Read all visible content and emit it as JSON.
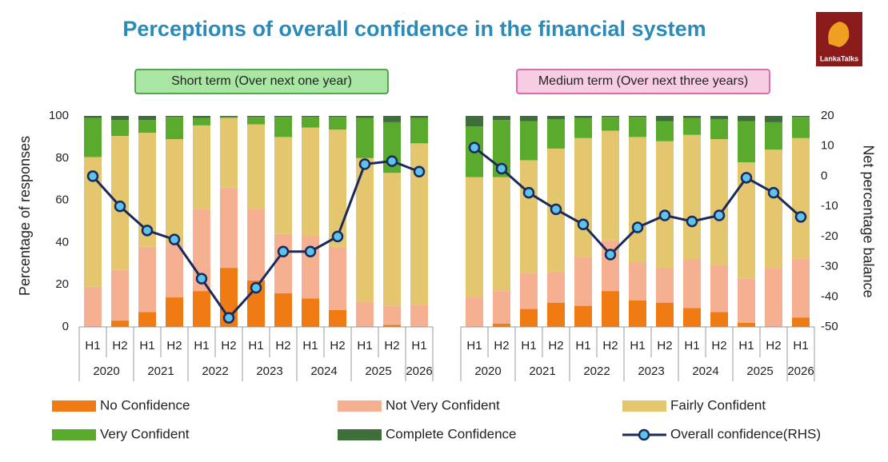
{
  "chart_data": {
    "type": "stacked_bar_line",
    "title": "Perceptions of overall confidence in the financial system",
    "logo": "LankaTalks",
    "y_label": "Percentage of responses",
    "y2_label": "Net percentage balance",
    "ylim": [
      0,
      100
    ],
    "yticks": [
      0,
      20,
      40,
      60,
      80,
      100
    ],
    "y2lim": [
      -50,
      20
    ],
    "y2ticks": [
      -50,
      -40,
      -30,
      -20,
      -10,
      0,
      10,
      20
    ],
    "x_groups": [
      {
        "label": "2020",
        "categories": [
          "H1",
          "H2"
        ]
      },
      {
        "label": "2021",
        "categories": [
          "H1",
          "H2"
        ]
      },
      {
        "label": "2022",
        "categories": [
          "H1",
          "H2"
        ]
      },
      {
        "label": "2023",
        "categories": [
          "H1",
          "H2"
        ]
      },
      {
        "label": "2024",
        "categories": [
          "H1",
          "H2"
        ]
      },
      {
        "label": "2025",
        "categories": [
          "H1",
          "H2"
        ]
      },
      {
        "label": "2026",
        "categories": [
          "H1"
        ]
      }
    ],
    "series": [
      {
        "name": "No Confidence",
        "color": "#f07b12"
      },
      {
        "name": "Not Very Confident",
        "color": "#f5b092"
      },
      {
        "name": "Fairly Confident",
        "color": "#e3c66e"
      },
      {
        "name": "Very Confident",
        "color": "#5aaa2e"
      },
      {
        "name": "Complete Confidence",
        "color": "#3e6f3b"
      }
    ],
    "line": {
      "name": "Overall confidence(RHS)",
      "color": "#1b2a5c",
      "marker_color": "#5cc3ea",
      "axis": "y2"
    },
    "panels": [
      {
        "label": "Short term (Over next one year)",
        "series_values": [
          [
            0,
            3,
            7,
            14,
            17,
            28,
            22,
            16,
            13.5,
            8,
            0,
            1,
            0
          ],
          [
            19,
            24,
            31,
            25,
            39,
            38,
            34,
            28,
            29.5,
            30,
            12,
            9,
            10.5
          ],
          [
            61.5,
            63.5,
            54,
            50,
            39.5,
            33,
            40,
            46,
            51.5,
            55.5,
            68,
            63,
            76.5
          ],
          [
            18.5,
            7.5,
            6,
            10.5,
            3.5,
            0.5,
            3.5,
            9.5,
            5,
            6,
            19,
            24,
            12
          ],
          [
            1,
            2,
            2,
            0.5,
            1,
            0.5,
            0.5,
            0.5,
            0.5,
            0.5,
            1,
            3,
            1
          ]
        ],
        "line_values": [
          0,
          -10,
          -18,
          -21,
          -34,
          -47,
          -37,
          -25,
          -25,
          -20,
          4,
          5,
          1.5
        ]
      },
      {
        "label": "Medium term (Over next three years)",
        "series_values": [
          [
            0,
            1.5,
            8.5,
            11.5,
            10,
            17,
            12.5,
            11.5,
            9,
            7,
            2,
            0,
            4.5
          ],
          [
            14,
            15.5,
            17,
            14.5,
            23,
            24,
            18,
            16.5,
            23,
            22.5,
            21,
            28,
            28
          ],
          [
            57,
            54,
            53.5,
            58.5,
            56.5,
            52,
            59.5,
            60,
            59,
            59.5,
            55,
            56,
            57
          ],
          [
            24,
            27,
            18.5,
            14,
            9.5,
            6.5,
            9.5,
            9.5,
            8,
            9.5,
            19.5,
            13,
            10
          ],
          [
            5,
            2,
            2.5,
            1.5,
            1,
            0.5,
            0.5,
            2.5,
            1,
            1.5,
            2.5,
            3,
            0.5
          ]
        ],
        "line_values": [
          9.5,
          2.5,
          -5.5,
          -11,
          -16,
          -26,
          -17,
          -13,
          -15,
          -13,
          -0.5,
          -5.5,
          -13.5
        ]
      }
    ]
  }
}
